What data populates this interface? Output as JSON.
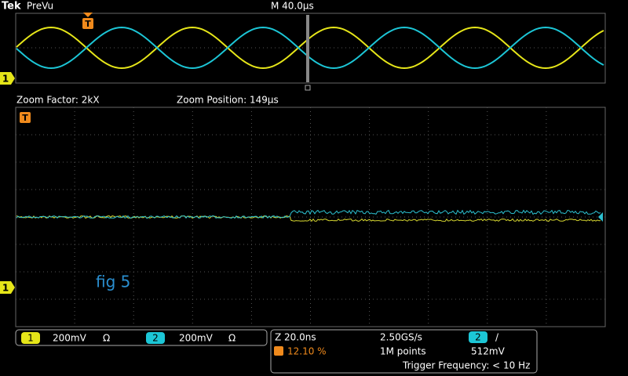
{
  "header": {
    "brand": "Tek",
    "mode": "PreVu",
    "timebase": "M 40.0µs"
  },
  "trigger_marker": "T",
  "channel_marker": "1",
  "zoom": {
    "factor": "Zoom Factor: 2kX",
    "position": "Zoom Position: 149µs"
  },
  "annotation": "fig 5",
  "channels": [
    {
      "number": "1",
      "scale": "200mV",
      "coupling": "Ω"
    },
    {
      "number": "2",
      "scale": "200mV",
      "coupling": "Ω"
    }
  ],
  "acquisition": {
    "zoom_scale": "Z 20.0ns",
    "sample_rate": "2.50GS/s",
    "trigger_source": "2",
    "trigger_slope": "/",
    "trigger_position": "12.10 %",
    "record_length": "1M points",
    "trigger_level": "512mV",
    "trigger_frequency": "Trigger Frequency: < 10 Hz"
  }
}
